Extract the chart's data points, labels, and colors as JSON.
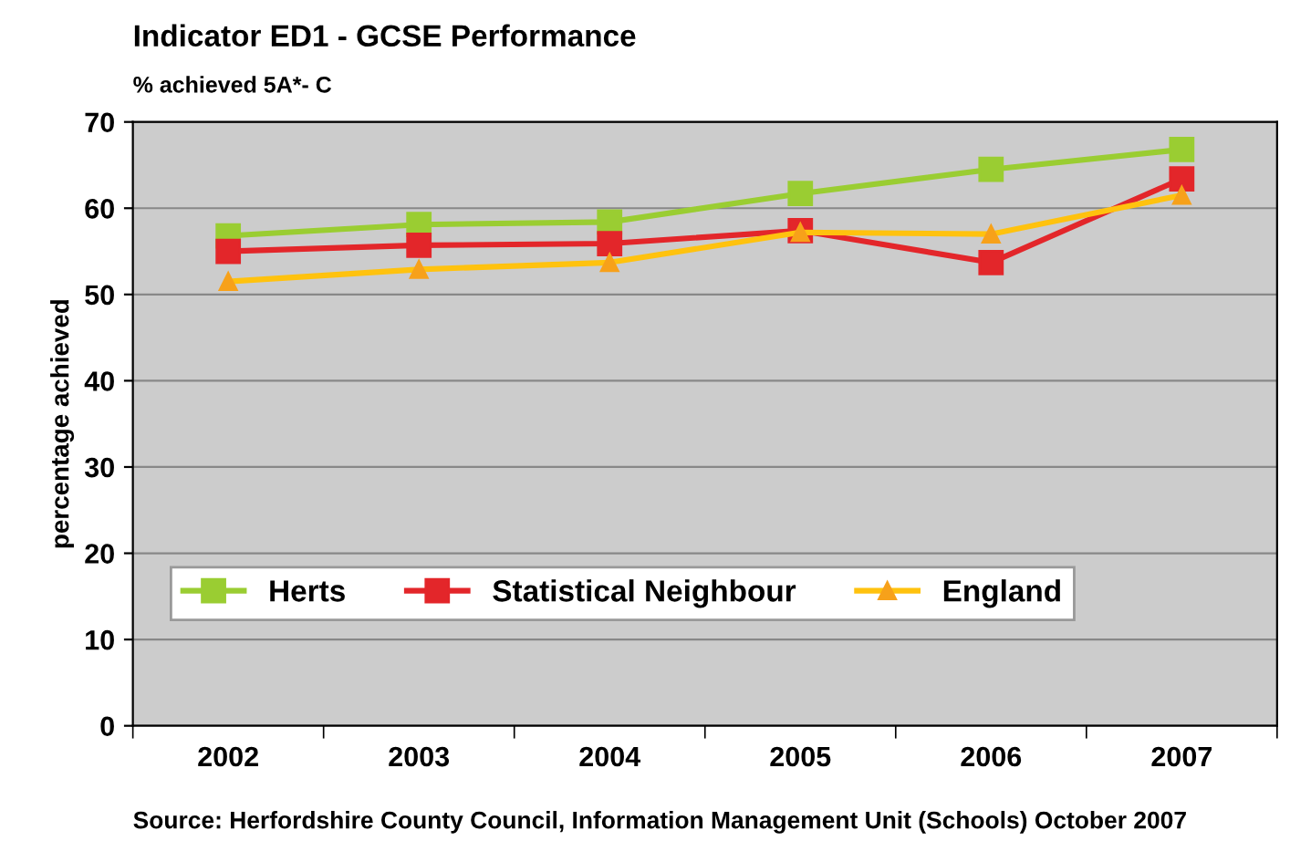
{
  "chart_data": {
    "type": "line",
    "title": "Indicator ED1 - GCSE Performance",
    "subtitle": "% achieved 5A*- C",
    "ylabel": "percentage achieved",
    "categories": [
      "2002",
      "2003",
      "2004",
      "2005",
      "2006",
      "2007"
    ],
    "series": [
      {
        "name": "Herts",
        "color": "#9acd32",
        "marker": "square",
        "values": [
          56.8,
          58.1,
          58.4,
          61.7,
          64.5,
          66.8
        ]
      },
      {
        "name": "Statistical Neighbour",
        "color": "#e3262a",
        "marker": "square",
        "values": [
          55.0,
          55.7,
          55.9,
          57.4,
          53.7,
          63.4
        ]
      },
      {
        "name": "England",
        "color": "#ffc20e",
        "marker": "triangle",
        "values": [
          51.5,
          52.9,
          53.7,
          57.2,
          57.0,
          61.5
        ]
      }
    ],
    "ylim": [
      0,
      70
    ],
    "yticks": [
      0,
      10,
      20,
      30,
      40,
      50,
      60,
      70
    ],
    "grid": "y",
    "legend": "bottom left",
    "line_style": "solid",
    "annotations": [
      "Source: Herfordshire County Council, Information Management Unit (Schools) October 2007"
    ]
  }
}
